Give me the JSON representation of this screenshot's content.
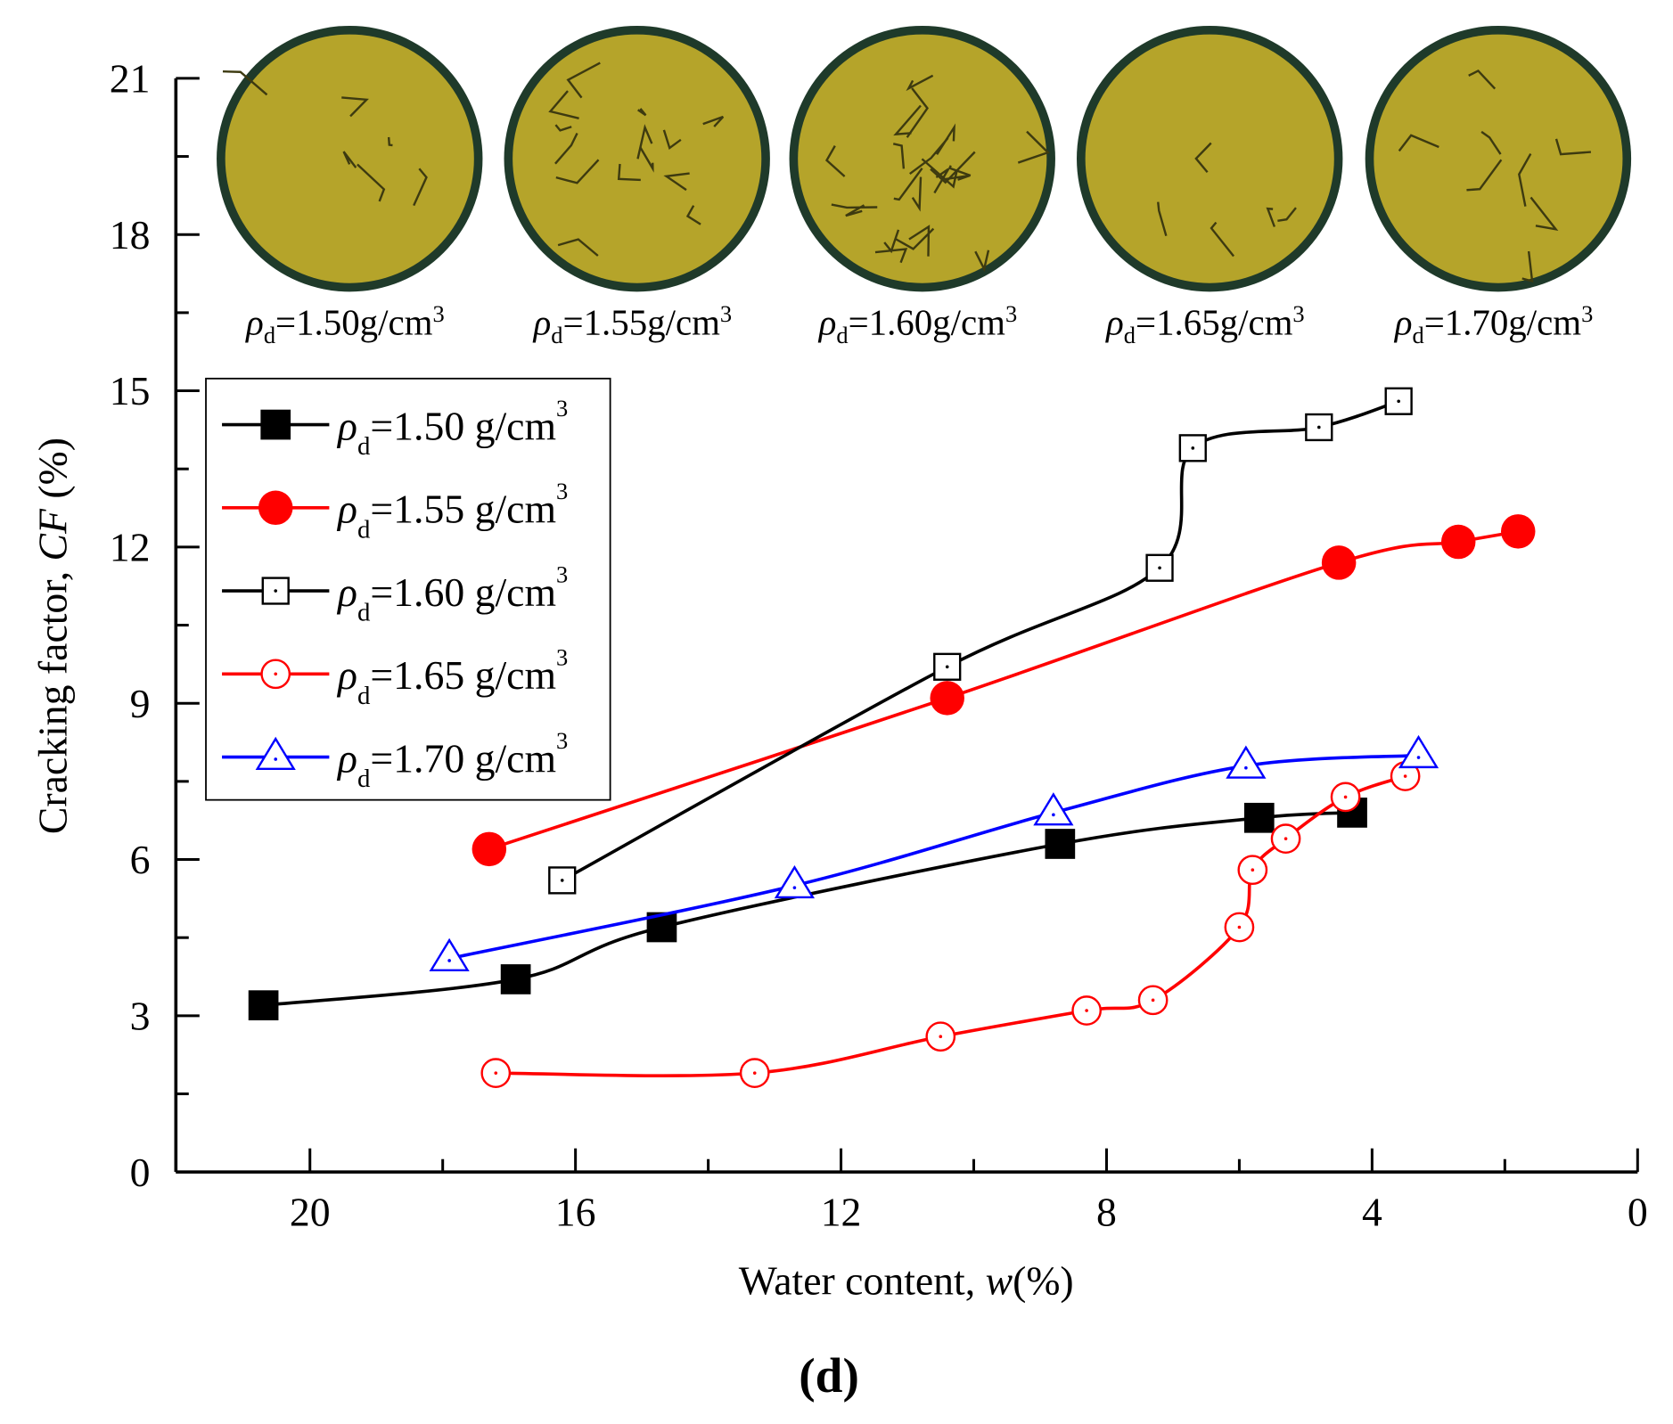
{
  "chart_data": {
    "type": "line",
    "title": "",
    "panel_label": "(d)",
    "xlabel": "Water content, ",
    "xlabel_var": "w",
    "xlabel_unit": "(%)",
    "ylabel": "Cracking factor, ",
    "ylabel_var": "CF",
    "ylabel_unit": " (%)",
    "xlim": [
      22,
      0
    ],
    "ylim": [
      0,
      21
    ],
    "xticks": [
      "20",
      "16",
      "12",
      "8",
      "4",
      "0"
    ],
    "xtick_values": [
      20,
      16,
      12,
      8,
      4,
      0
    ],
    "yticks": [
      "0",
      "3",
      "6",
      "9",
      "12",
      "15",
      "18",
      "21"
    ],
    "ytick_values": [
      0,
      3,
      6,
      9,
      12,
      15,
      18,
      21
    ],
    "legend_position": "upper-left",
    "series": [
      {
        "name": "ρd=1.50 g/cm3",
        "density": "1.50",
        "color": "#000000",
        "marker": "square-filled",
        "x": [
          20.7,
          16.9,
          14.7,
          8.7,
          5.7,
          4.3
        ],
        "y": [
          3.2,
          3.7,
          4.7,
          6.3,
          6.8,
          6.9
        ]
      },
      {
        "name": "ρd=1.55 g/cm3",
        "density": "1.55",
        "color": "#ff0000",
        "marker": "circle-filled",
        "x": [
          17.3,
          10.4,
          4.5,
          2.7,
          1.8
        ],
        "y": [
          6.2,
          9.1,
          11.7,
          12.1,
          12.3
        ]
      },
      {
        "name": "ρd=1.60 g/cm3",
        "density": "1.60",
        "color": "#000000",
        "marker": "square-open",
        "x": [
          16.2,
          10.4,
          7.2,
          6.7,
          4.8,
          3.6
        ],
        "y": [
          5.6,
          9.7,
          11.6,
          13.9,
          14.3,
          14.8
        ]
      },
      {
        "name": "ρd=1.65 g/cm3",
        "density": "1.65",
        "color": "#ff0000",
        "marker": "circle-open",
        "x": [
          17.2,
          13.3,
          10.5,
          8.3,
          7.3,
          6.0,
          5.8,
          5.3,
          4.4,
          3.5
        ],
        "y": [
          1.9,
          1.9,
          2.6,
          3.1,
          3.3,
          4.7,
          5.8,
          6.4,
          7.2,
          7.6
        ]
      },
      {
        "name": "ρd=1.70 g/cm3",
        "density": "1.70",
        "color": "#0000ff",
        "marker": "triangle-open",
        "x": [
          17.9,
          12.7,
          8.8,
          5.9,
          3.3
        ],
        "y": [
          4.1,
          5.5,
          6.9,
          7.8,
          8.0
        ]
      }
    ],
    "photo_labels": [
      "1.50g/cm",
      "1.55g/cm",
      "1.60g/cm",
      "1.65g/cm",
      "1.70g/cm"
    ],
    "rho_symbol": "ρ",
    "rho_sub": "d",
    "unit_sup": "3",
    "legend_eq": "=",
    "legend_unit": " g/cm"
  }
}
